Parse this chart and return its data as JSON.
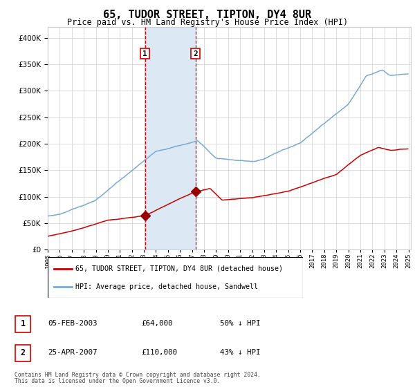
{
  "title": "65, TUDOR STREET, TIPTON, DY4 8UR",
  "subtitle": "Price paid vs. HM Land Registry's House Price Index (HPI)",
  "legend_line1": "65, TUDOR STREET, TIPTON, DY4 8UR (detached house)",
  "legend_line2": "HPI: Average price, detached house, Sandwell",
  "footnote1": "Contains HM Land Registry data © Crown copyright and database right 2024.",
  "footnote2": "This data is licensed under the Open Government Licence v3.0.",
  "transaction1_date": "05-FEB-2003",
  "transaction1_price": 64000,
  "transaction1_label": "50% ↓ HPI",
  "transaction1_year": 2003.09,
  "transaction2_date": "25-APR-2007",
  "transaction2_price": 110000,
  "transaction2_label": "43% ↓ HPI",
  "transaction2_year": 2007.29,
  "red_line_color": "#cc0000",
  "blue_line_color": "#7aa8d2",
  "shade_color": "#dce9f5",
  "marker_color": "#990000",
  "grid_color": "#cccccc",
  "background_color": "#ffffff",
  "ylim_max": 420000,
  "yticks": [
    0,
    50000,
    100000,
    150000,
    200000,
    250000,
    300000,
    350000,
    400000
  ],
  "ytick_labels": [
    "£0",
    "£50K",
    "£100K",
    "£150K",
    "£200K",
    "£250K",
    "£300K",
    "£350K",
    "£400K"
  ],
  "xstart": 1995,
  "xend": 2025
}
